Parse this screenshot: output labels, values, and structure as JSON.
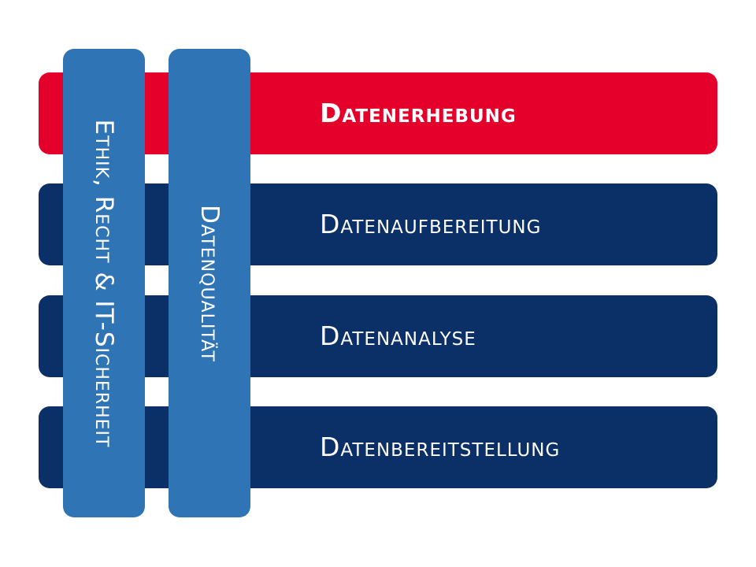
{
  "colors": {
    "accent_red": "#e4002b",
    "navy": "#0b3068",
    "pillar_blue": "#2f74b5",
    "text": "#ffffff"
  },
  "rows": [
    {
      "label": "Datenerhebung",
      "color": "#e4002b",
      "emphasis": "bold"
    },
    {
      "label": "Datenaufbereitung",
      "color": "#0b3068"
    },
    {
      "label": "Datenanalyse",
      "color": "#0b3068"
    },
    {
      "label": "Datenbereitstellung",
      "color": "#0b3068"
    }
  ],
  "pillars": [
    {
      "label": "Ethik, Recht & IT-Sicherheit",
      "color": "#2f74b5"
    },
    {
      "label": "Datenqualität",
      "color": "#2f74b5"
    }
  ]
}
